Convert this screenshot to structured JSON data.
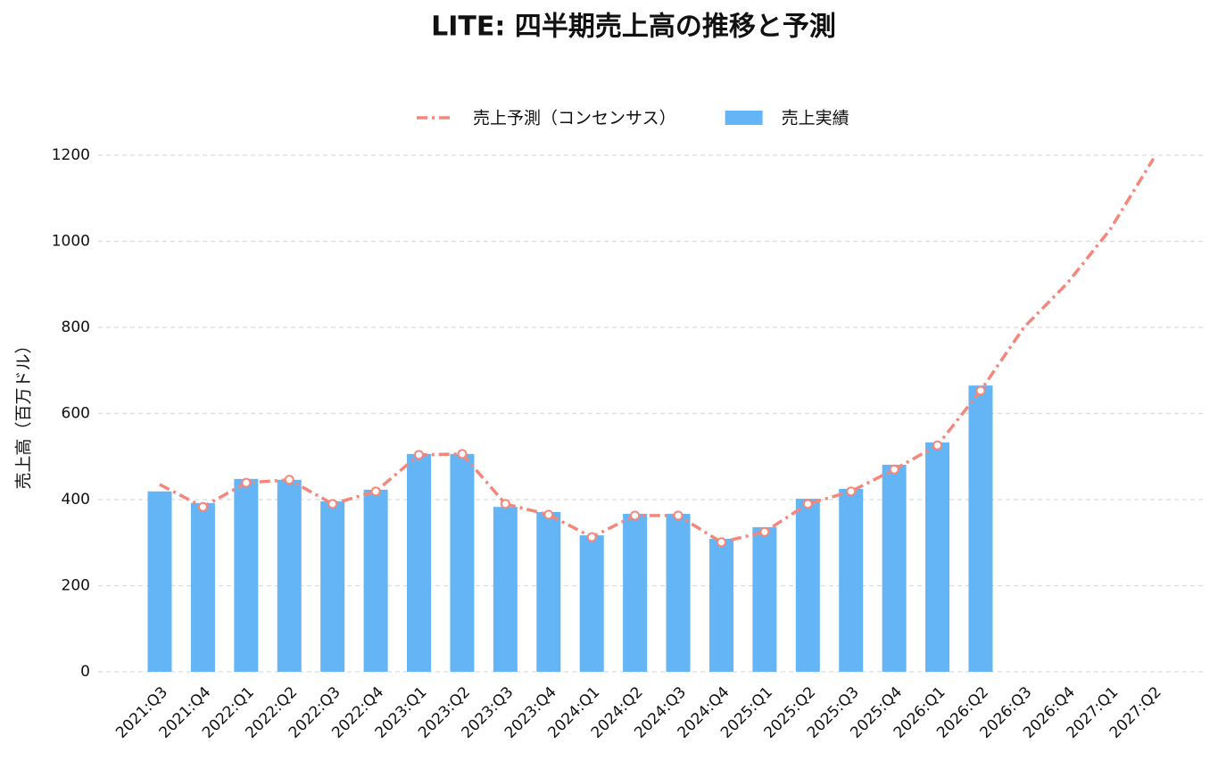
{
  "chart_data": {
    "type": "combo",
    "title": "LITE: 四半期売上高の推移と予測",
    "y_label": "売上高（百万ドル）",
    "categories": [
      "2021:Q3",
      "2021:Q4",
      "2022:Q1",
      "2022:Q2",
      "2022:Q3",
      "2022:Q4",
      "2023:Q1",
      "2023:Q2",
      "2023:Q3",
      "2023:Q4",
      "2024:Q1",
      "2024:Q2",
      "2024:Q3",
      "2024:Q4",
      "2025:Q1",
      "2025:Q2",
      "2025:Q3",
      "2025:Q4",
      "2026:Q1",
      "2026:Q2",
      "2026:Q3",
      "2026:Q4",
      "2027:Q1",
      "2027:Q2"
    ],
    "series": [
      {
        "name": "売上予測（コンセンサス）",
        "type": "line",
        "color": "#f4877b",
        "values": [
          435,
          383,
          439,
          446,
          390,
          419,
          504,
          506,
          390,
          365,
          313,
          363,
          363,
          301,
          325,
          390,
          419,
          470,
          526,
          653,
          800,
          902,
          1028,
          1192
        ]
      },
      {
        "name": "売上実績",
        "type": "bar",
        "color": "#64b5f6",
        "values": [
          419,
          392,
          448,
          446,
          396,
          423,
          506,
          506,
          383,
          371,
          317,
          367,
          367,
          309,
          336,
          402,
          425,
          481,
          533,
          665,
          null,
          null,
          null,
          null
        ]
      }
    ],
    "ylim": [
      0,
      1200
    ],
    "yticks": [
      0,
      200,
      400,
      600,
      800,
      1000,
      1200
    ],
    "grid": true,
    "legend": "top"
  }
}
